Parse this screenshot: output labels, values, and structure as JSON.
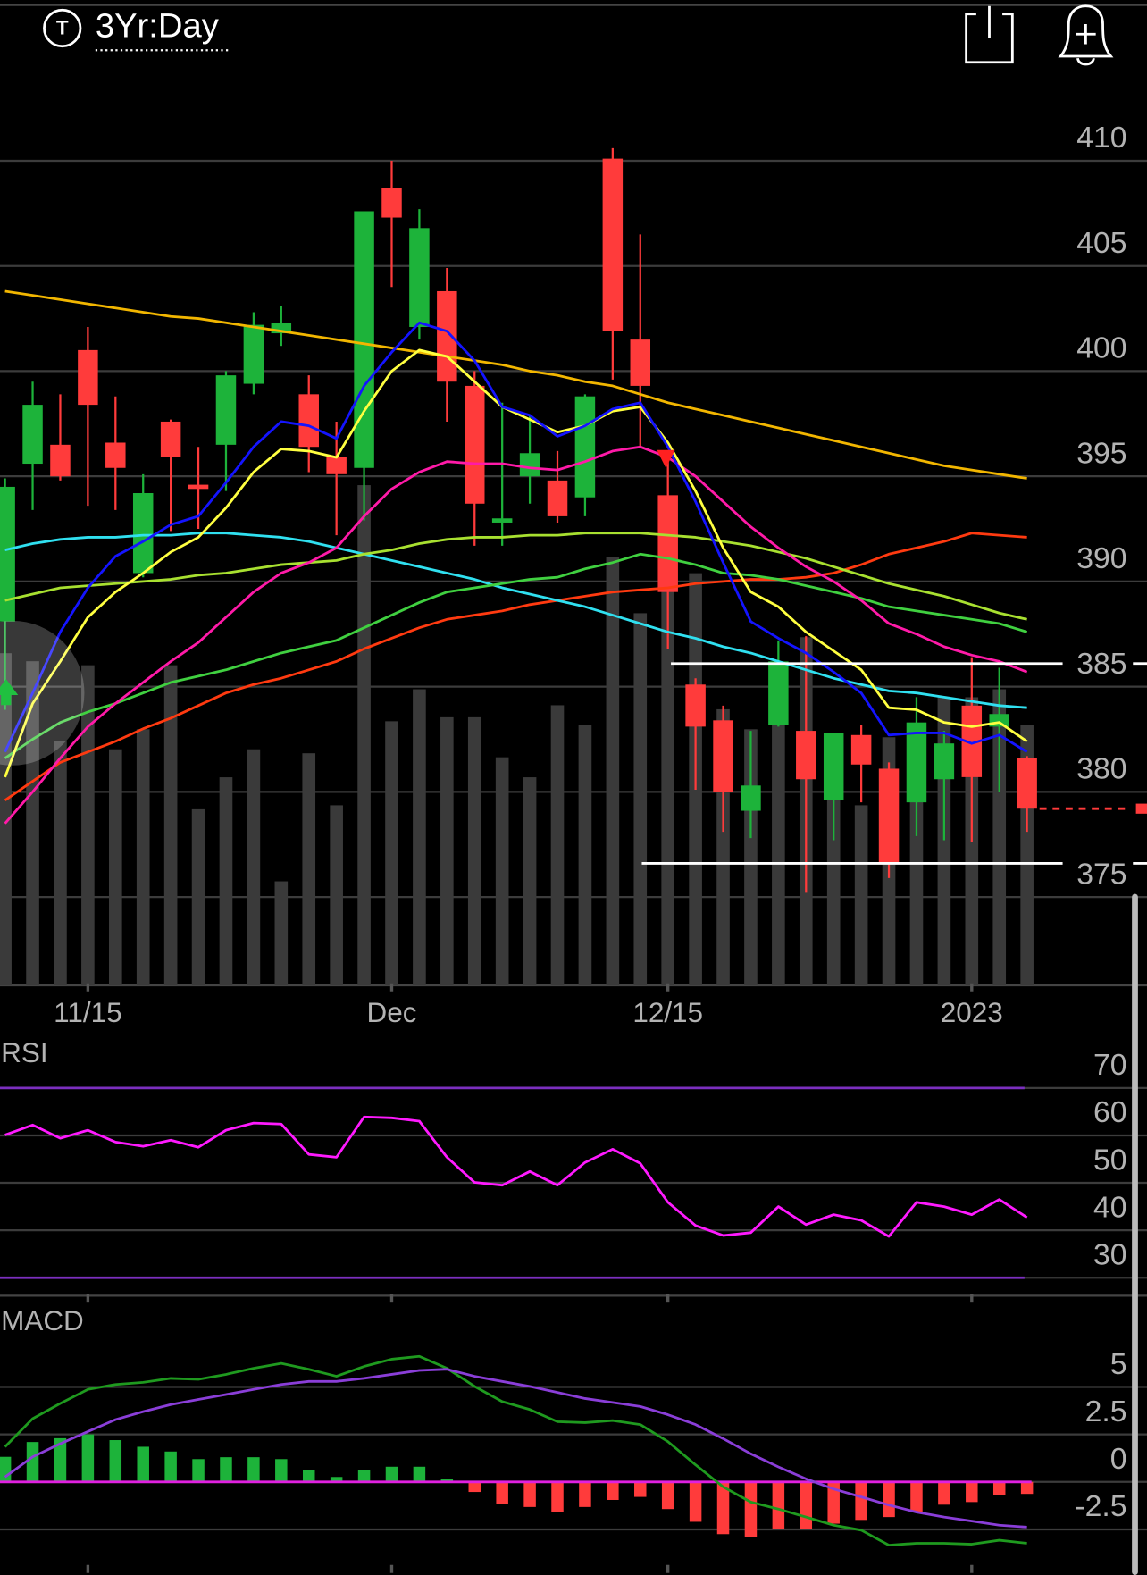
{
  "header": {
    "icon_letter": "T",
    "range": "3Yr:Day"
  },
  "chart_data": [
    {
      "type": "candlestick",
      "categories": [
        null,
        null,
        null,
        "11/15",
        null,
        null,
        null,
        null,
        null,
        null,
        null,
        null,
        null,
        null,
        "Dec",
        null,
        null,
        null,
        null,
        null,
        null,
        null,
        null,
        null,
        "12/15",
        null,
        null,
        null,
        null,
        null,
        null,
        null,
        null,
        null,
        null,
        "2023",
        null,
        null
      ],
      "open": [
        388.1,
        395.6,
        396.5,
        401.0,
        396.6,
        390.4,
        397.6,
        394.6,
        396.5,
        399.4,
        401.8,
        398.9,
        395.9,
        395.4,
        408.7,
        402.1,
        403.8,
        399.3,
        392.8,
        395.0,
        394.8,
        394.0,
        410.1,
        401.5,
        394.1,
        385.1,
        383.4,
        379.1,
        383.2,
        382.9,
        379.6,
        382.7,
        381.1,
        379.5,
        380.6,
        384.1,
        383.1,
        381.6
      ],
      "high": [
        394.9,
        399.5,
        398.9,
        402.1,
        398.8,
        395.1,
        397.7,
        396.4,
        400.0,
        402.8,
        403.1,
        399.8,
        397.6,
        407.6,
        410.0,
        407.7,
        404.9,
        400.0,
        398.5,
        397.9,
        396.2,
        398.9,
        410.6,
        406.5,
        396.2,
        385.4,
        384.1,
        382.9,
        387.2,
        387.4,
        382.8,
        383.2,
        381.4,
        384.5,
        382.9,
        386.4,
        385.9,
        381.7
      ],
      "low": [
        383.9,
        393.4,
        394.8,
        393.6,
        393.4,
        390.2,
        392.4,
        392.5,
        394.3,
        398.9,
        401.2,
        395.2,
        392.2,
        392.9,
        404.0,
        401.5,
        397.6,
        391.7,
        391.7,
        393.7,
        392.8,
        393.1,
        399.6,
        396.4,
        386.8,
        380.1,
        378.1,
        377.8,
        383.1,
        375.2,
        377.7,
        379.5,
        375.9,
        377.9,
        377.7,
        377.6,
        380.0,
        378.1
      ],
      "close": [
        394.5,
        398.4,
        395.0,
        398.4,
        395.4,
        394.2,
        395.9,
        394.4,
        399.8,
        402.2,
        402.3,
        396.4,
        395.1,
        407.6,
        407.3,
        406.8,
        399.5,
        393.7,
        393.0,
        396.1,
        393.1,
        398.8,
        401.9,
        399.3,
        389.5,
        383.1,
        380.0,
        380.3,
        386.2,
        380.6,
        382.8,
        381.3,
        376.6,
        383.3,
        382.3,
        380.7,
        383.7,
        379.2
      ],
      "volume": [
        83,
        81,
        61,
        80,
        59,
        64,
        80,
        44,
        52,
        59,
        26,
        58,
        45,
        125,
        66,
        74,
        67,
        67,
        57,
        52,
        70,
        65,
        107,
        93,
        100,
        103,
        69,
        64,
        80,
        87,
        52,
        45,
        62,
        64,
        72,
        72,
        74,
        65
      ],
      "overlays": [
        {
          "color": "#f2b600",
          "values": [
            403.8,
            403.6,
            403.4,
            403.2,
            403.0,
            402.8,
            402.6,
            402.5,
            402.3,
            402.1,
            401.9,
            401.7,
            401.5,
            401.3,
            401.1,
            400.9,
            400.7,
            400.5,
            400.3,
            400.0,
            399.8,
            399.5,
            399.3,
            398.9,
            398.5,
            398.2,
            397.9,
            397.6,
            397.3,
            397.0,
            396.7,
            396.4,
            396.1,
            395.8,
            395.5,
            395.3,
            395.1,
            394.9
          ]
        },
        {
          "color": "#ff3a10",
          "values": [
            379.6,
            380.5,
            381.4,
            381.9,
            382.4,
            383.0,
            383.5,
            384.1,
            384.7,
            385.1,
            385.4,
            385.8,
            386.2,
            386.8,
            387.3,
            387.8,
            388.2,
            388.4,
            388.6,
            388.9,
            389.1,
            389.3,
            389.5,
            389.6,
            389.7,
            389.9,
            390.0,
            390.1,
            390.1,
            390.2,
            390.4,
            390.8,
            391.3,
            391.6,
            391.9,
            392.3,
            392.2,
            392.1
          ]
        },
        {
          "color": "#30e0f0",
          "values": [
            391.5,
            391.8,
            392.0,
            392.1,
            392.1,
            392.2,
            392.2,
            392.3,
            392.3,
            392.2,
            392.1,
            391.9,
            391.6,
            391.3,
            391.0,
            390.7,
            390.4,
            390.1,
            389.7,
            389.4,
            389.1,
            388.8,
            388.4,
            388.0,
            387.6,
            387.3,
            386.9,
            386.6,
            386.2,
            385.8,
            385.4,
            385.1,
            384.8,
            384.7,
            384.5,
            384.3,
            384.1,
            384.0
          ]
        },
        {
          "color": "#40d040",
          "values": [
            381.6,
            382.5,
            383.3,
            383.8,
            384.2,
            384.7,
            385.2,
            385.5,
            385.8,
            386.2,
            386.6,
            386.9,
            387.2,
            387.8,
            388.4,
            389.0,
            389.5,
            389.7,
            389.9,
            390.1,
            390.2,
            390.6,
            390.9,
            391.3,
            391.1,
            390.8,
            390.4,
            390.3,
            390.1,
            389.8,
            389.5,
            389.2,
            388.8,
            388.6,
            388.4,
            388.2,
            388.0,
            387.6
          ]
        },
        {
          "color": "#a8e030",
          "values": [
            389.1,
            389.4,
            389.7,
            389.8,
            389.9,
            390.0,
            390.1,
            390.3,
            390.4,
            390.6,
            390.8,
            390.9,
            391.0,
            391.3,
            391.5,
            391.8,
            392.0,
            392.1,
            392.1,
            392.2,
            392.2,
            392.3,
            392.3,
            392.3,
            392.2,
            392.1,
            391.9,
            391.7,
            391.4,
            391.1,
            390.7,
            390.3,
            389.9,
            389.6,
            389.3,
            388.9,
            388.5,
            388.2
          ]
        },
        {
          "color": "#ff1aa8",
          "values": [
            378.5,
            380.0,
            381.6,
            383.1,
            384.2,
            385.2,
            386.2,
            387.1,
            388.3,
            389.5,
            390.4,
            390.9,
            391.6,
            393.1,
            394.4,
            395.2,
            395.7,
            395.6,
            395.6,
            395.4,
            395.3,
            395.7,
            396.2,
            396.4,
            395.9,
            395.0,
            393.8,
            392.6,
            391.6,
            390.7,
            390.0,
            389.1,
            388.0,
            387.5,
            386.9,
            386.5,
            386.2,
            385.7
          ]
        },
        {
          "color": "#ffff40",
          "values": [
            380.7,
            384.2,
            386.2,
            388.3,
            389.5,
            390.4,
            391.4,
            392.1,
            393.5,
            395.2,
            396.3,
            396.2,
            395.9,
            398.1,
            400.0,
            401.0,
            400.7,
            399.5,
            398.3,
            397.7,
            397.1,
            397.4,
            398.1,
            398.3,
            396.6,
            394.3,
            391.6,
            389.5,
            388.8,
            387.6,
            386.7,
            385.8,
            384.0,
            383.9,
            383.3,
            383.1,
            383.3,
            382.4
          ]
        },
        {
          "color": "#1414ff",
          "values": [
            381.9,
            384.7,
            387.6,
            389.7,
            391.2,
            391.9,
            392.7,
            393.1,
            394.7,
            396.4,
            397.6,
            397.4,
            396.8,
            399.3,
            400.9,
            402.3,
            401.9,
            400.5,
            398.3,
            397.9,
            396.9,
            397.4,
            398.2,
            398.5,
            396.4,
            393.8,
            390.9,
            388.1,
            387.3,
            386.6,
            385.7,
            384.7,
            382.7,
            382.8,
            382.8,
            382.3,
            382.7,
            381.9
          ]
        }
      ],
      "hlines": [
        386.1,
        376.6
      ],
      "up_color": "#1db33a",
      "down_color": "#ff3b3b",
      "volume_color": "#3a3a3a",
      "ylim": [
        370.8,
        414.3
      ],
      "yticks": [
        375,
        380,
        385,
        390,
        395,
        400,
        405,
        410
      ],
      "grid": true
    },
    {
      "type": "line",
      "title": "RSI",
      "series": [
        {
          "color": "#ff1aff",
          "values": [
            60.1,
            62.2,
            59.4,
            61.1,
            58.6,
            57.7,
            59.0,
            57.5,
            61.1,
            62.6,
            62.4,
            56.0,
            55.4,
            63.9,
            63.7,
            63.0,
            55.4,
            50.1,
            49.5,
            52.4,
            49.5,
            54.3,
            57.1,
            54.1,
            45.9,
            41.0,
            38.9,
            39.5,
            45.0,
            41.2,
            43.3,
            42.1,
            38.7,
            45.9,
            45.0,
            43.3,
            46.5,
            42.7
          ]
        }
      ],
      "reference_lines": {
        "values": [
          70,
          30
        ],
        "color": "#7b2fbf"
      },
      "ylim": [
        26.2,
        80.2
      ],
      "yticks": [
        30,
        40,
        50,
        60,
        70
      ],
      "grid": true
    },
    {
      "type": "macd",
      "title": "MACD",
      "histogram": [
        1.32,
        2.1,
        2.3,
        2.5,
        2.2,
        1.85,
        1.6,
        1.2,
        1.3,
        1.3,
        1.2,
        0.63,
        0.26,
        0.63,
        0.8,
        0.8,
        0.16,
        -0.53,
        -1.16,
        -1.32,
        -1.59,
        -1.32,
        -0.95,
        -0.79,
        -1.43,
        -2.1,
        -2.75,
        -2.9,
        -2.5,
        -2.5,
        -2.2,
        -2.0,
        -1.85,
        -1.6,
        -1.2,
        -1.06,
        -0.69,
        -0.63
      ],
      "series": [
        {
          "color": "#1f9a1f",
          "values": [
            1.85,
            3.33,
            4.13,
            4.87,
            5.13,
            5.24,
            5.45,
            5.4,
            5.66,
            5.98,
            6.24,
            5.93,
            5.56,
            6.08,
            6.46,
            6.61,
            5.98,
            5.03,
            4.23,
            3.81,
            3.17,
            3.12,
            3.23,
            3.02,
            2.12,
            0.9,
            -0.26,
            -1.06,
            -1.43,
            -1.85,
            -2.28,
            -2.54,
            -3.33,
            -3.23,
            -3.23,
            -3.28,
            -3.07,
            -3.23
          ]
        },
        {
          "color": "#8a3ed8",
          "values": [
            0.26,
            1.32,
            2.01,
            2.65,
            3.28,
            3.7,
            4.07,
            4.34,
            4.6,
            4.87,
            5.13,
            5.29,
            5.29,
            5.45,
            5.66,
            5.87,
            5.93,
            5.56,
            5.29,
            5.03,
            4.71,
            4.39,
            4.18,
            3.97,
            3.54,
            3.02,
            2.28,
            1.48,
            0.79,
            0.16,
            -0.37,
            -0.79,
            -1.22,
            -1.59,
            -1.85,
            -2.06,
            -2.28,
            -2.38
          ]
        }
      ],
      "up_color": "#1db33a",
      "down_color": "#ff3b3b",
      "zero_color": "#e020e0",
      "ylim": [
        -4.9,
        9.8
      ],
      "yticks": [
        -2.5,
        0,
        2.5,
        5
      ],
      "grid": true
    }
  ]
}
